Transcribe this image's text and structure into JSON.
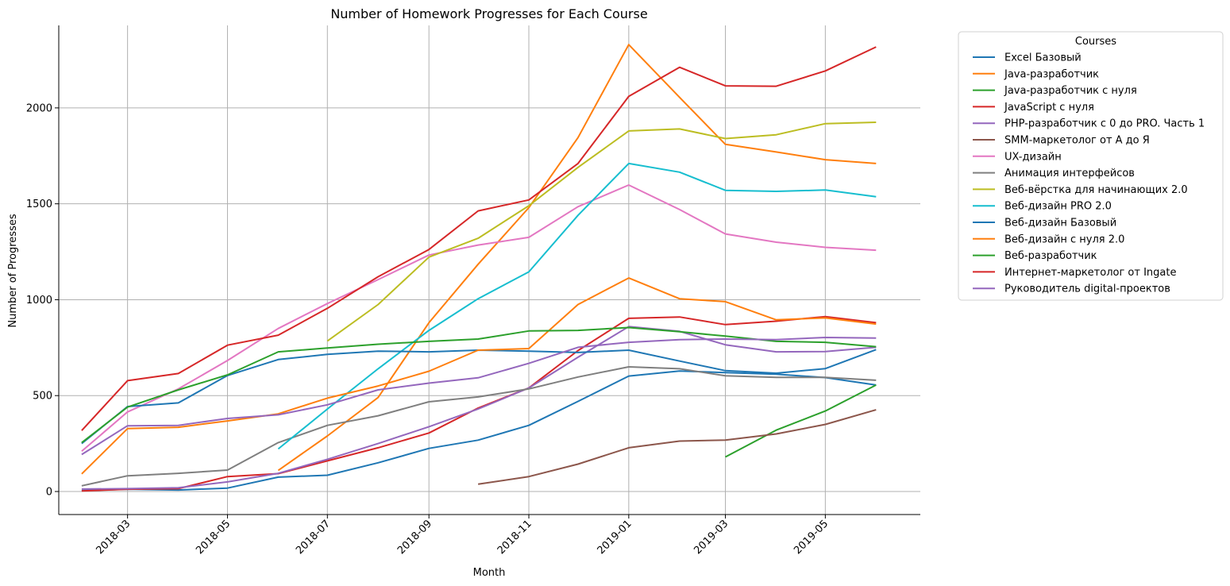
{
  "chart_data": {
    "type": "line",
    "title": "Number of Homework Progresses for Each Course",
    "xlabel": "Month",
    "ylabel": "Number of Progresses",
    "legend_title": "Courses",
    "legend_position": "outside-right",
    "grid": true,
    "ylim": [
      -120,
      2430
    ],
    "yticks": [
      0,
      500,
      1000,
      1500,
      2000
    ],
    "ytick_labels": [
      "0",
      "500",
      "1000",
      "1500",
      "2000"
    ],
    "xlim": [
      "2018-01-18",
      "2019-06-28"
    ],
    "xticks": [
      "2018-03-01",
      "2018-05-01",
      "2018-07-01",
      "2018-09-01",
      "2018-11-01",
      "2019-01-01",
      "2019-03-01",
      "2019-05-01"
    ],
    "xtick_labels": [
      "2018-03",
      "2018-05",
      "2018-07",
      "2018-09",
      "2018-11",
      "2019-01",
      "2019-03",
      "2019-05"
    ],
    "months": [
      "2018-02-01",
      "2018-03-01",
      "2018-04-01",
      "2018-05-01",
      "2018-06-01",
      "2018-07-01",
      "2018-08-01",
      "2018-09-01",
      "2018-10-01",
      "2018-11-01",
      "2018-12-01",
      "2019-01-01",
      "2019-02-01",
      "2019-03-01",
      "2019-04-01",
      "2019-05-01",
      "2019-06-01"
    ],
    "series": [
      {
        "name": "Excel Базовый",
        "color": "#1f77b4",
        "values": [
          5,
          12,
          8,
          18,
          75,
          85,
          150,
          225,
          268,
          345,
          470,
          602,
          628,
          620,
          612,
          594,
          555
        ]
      },
      {
        "name": "Java-разработчик",
        "color": "#ff7f0e",
        "values": [
          null,
          null,
          null,
          null,
          110,
          290,
          490,
          880,
          1185,
          1480,
          1845,
          2330,
          2055,
          1810,
          1770,
          1730,
          1710
        ]
      },
      {
        "name": "Java-разработчик с нуля",
        "color": "#2ca02c",
        "values": [
          null,
          null,
          null,
          null,
          null,
          null,
          null,
          null,
          null,
          null,
          null,
          null,
          null,
          180,
          320,
          420,
          555
        ]
      },
      {
        "name": "JavaScript с нуля",
        "color": "#d62728",
        "values": [
          3,
          12,
          15,
          78,
          93,
          160,
          228,
          305,
          435,
          540,
          735,
          903,
          910,
          870,
          888,
          912,
          880
        ]
      },
      {
        "name": "PHP-разработчик с 0 до PRO. Часть 1",
        "color": "#9467bd",
        "values": [
          13,
          15,
          20,
          50,
          95,
          168,
          250,
          338,
          430,
          540,
          700,
          860,
          835,
          765,
          728,
          730,
          752
        ]
      },
      {
        "name": "SMM-маркетолог от А до Я",
        "color": "#8c564b",
        "values": [
          null,
          null,
          null,
          null,
          null,
          null,
          null,
          null,
          38,
          78,
          143,
          228,
          263,
          268,
          300,
          350,
          426
        ]
      },
      {
        "name": "UX-дизайн",
        "color": "#e377c2",
        "values": [
          210,
          415,
          535,
          683,
          850,
          980,
          1105,
          1233,
          1285,
          1325,
          1485,
          1598,
          1470,
          1343,
          1300,
          1273,
          1258
        ]
      },
      {
        "name": "Анимация интерфейсов",
        "color": "#7f7f7f",
        "values": [
          30,
          82,
          95,
          112,
          255,
          345,
          395,
          468,
          493,
          535,
          597,
          650,
          640,
          603,
          595,
          595,
          580
        ]
      },
      {
        "name": "Веб-вёрстка для начинающих 2.0",
        "color": "#bcbd22",
        "values": [
          null,
          null,
          null,
          null,
          null,
          785,
          975,
          1222,
          1320,
          1490,
          1690,
          1880,
          1890,
          1840,
          1860,
          1918,
          1925
        ]
      },
      {
        "name": "Веб-дизайн PRO 2.0",
        "color": "#17becf",
        "values": [
          null,
          null,
          null,
          null,
          222,
          430,
          640,
          840,
          1005,
          1145,
          1440,
          1710,
          1665,
          1570,
          1565,
          1572,
          1537
        ]
      },
      {
        "name": "Веб-дизайн Базовый",
        "color": "#1f77b4",
        "values": [
          250,
          443,
          462,
          605,
          688,
          715,
          732,
          728,
          737,
          732,
          725,
          737,
          680,
          630,
          617,
          641,
          740
        ]
      },
      {
        "name": "Веб-дизайн с нуля 2.0",
        "color": "#ff7f0e",
        "values": [
          92,
          328,
          335,
          368,
          405,
          487,
          550,
          627,
          737,
          745,
          975,
          1113,
          1005,
          990,
          895,
          905,
          873
        ]
      },
      {
        "name": "Веб-разработчик",
        "color": "#2ca02c",
        "values": [
          255,
          440,
          530,
          608,
          728,
          748,
          768,
          783,
          795,
          837,
          840,
          855,
          833,
          810,
          783,
          778,
          755
        ]
      },
      {
        "name": "Интернет-маркетолог от Ingate",
        "color": "#d62728",
        "values": [
          318,
          578,
          615,
          763,
          815,
          955,
          1120,
          1262,
          1463,
          1520,
          1710,
          2060,
          2212,
          2115,
          2113,
          2193,
          2318
        ]
      },
      {
        "name": "Руководитель digital-проектов",
        "color": "#9467bd",
        "values": [
          193,
          343,
          345,
          381,
          400,
          452,
          530,
          565,
          593,
          668,
          752,
          778,
          792,
          795,
          792,
          803,
          800
        ]
      }
    ]
  }
}
